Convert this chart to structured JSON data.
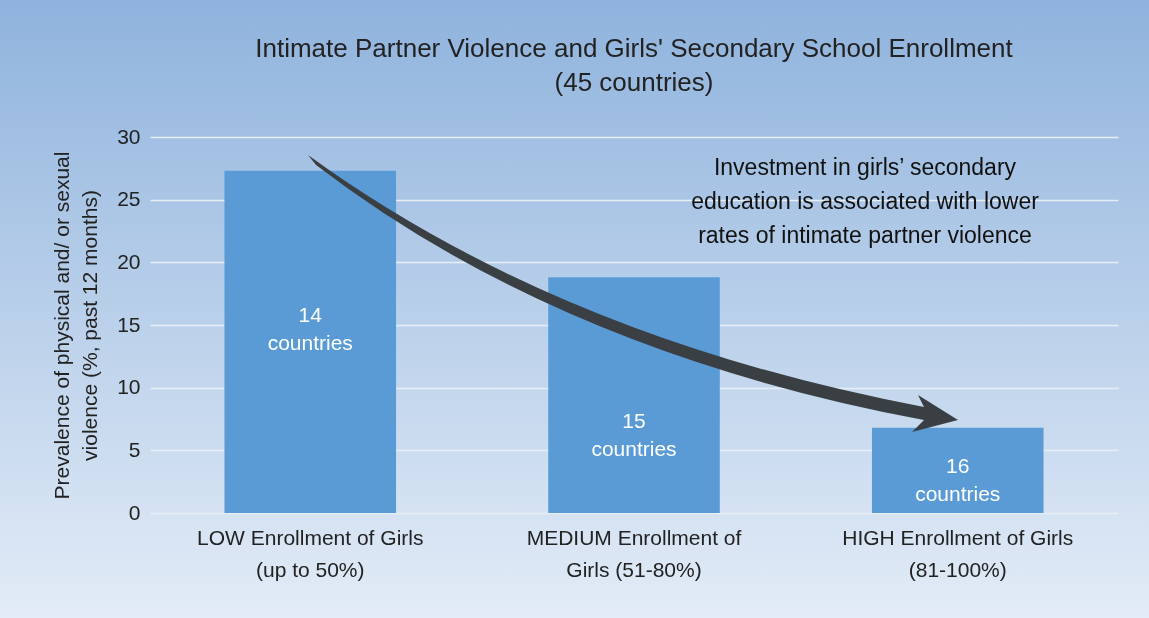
{
  "chart_data": {
    "type": "bar",
    "title": "Intimate Partner Violence and Girls' Secondary School Enrollment",
    "subtitle": "(45 countries)",
    "ylabel": "Prevalence of physical and/ or sexual violence (%, past 12 months)",
    "categories": [
      "LOW Enrollment of Girls (up to 50%)",
      "MEDIUM Enrollment of Girls (51-80%)",
      "HIGH Enrollment of Girls (81-100%)"
    ],
    "values": [
      27.3,
      18.8,
      6.8
    ],
    "color": "#5b9bd5",
    "ylim": [
      0,
      30
    ],
    "yticks": [
      0,
      5,
      10,
      15,
      20,
      25,
      30
    ],
    "grid": "y",
    "annotations": [
      "14 countries",
      "15 countries",
      "16 countries",
      "Investment in girls’ secondary education is associated with lower rates of intimate partner violence"
    ]
  }
}
